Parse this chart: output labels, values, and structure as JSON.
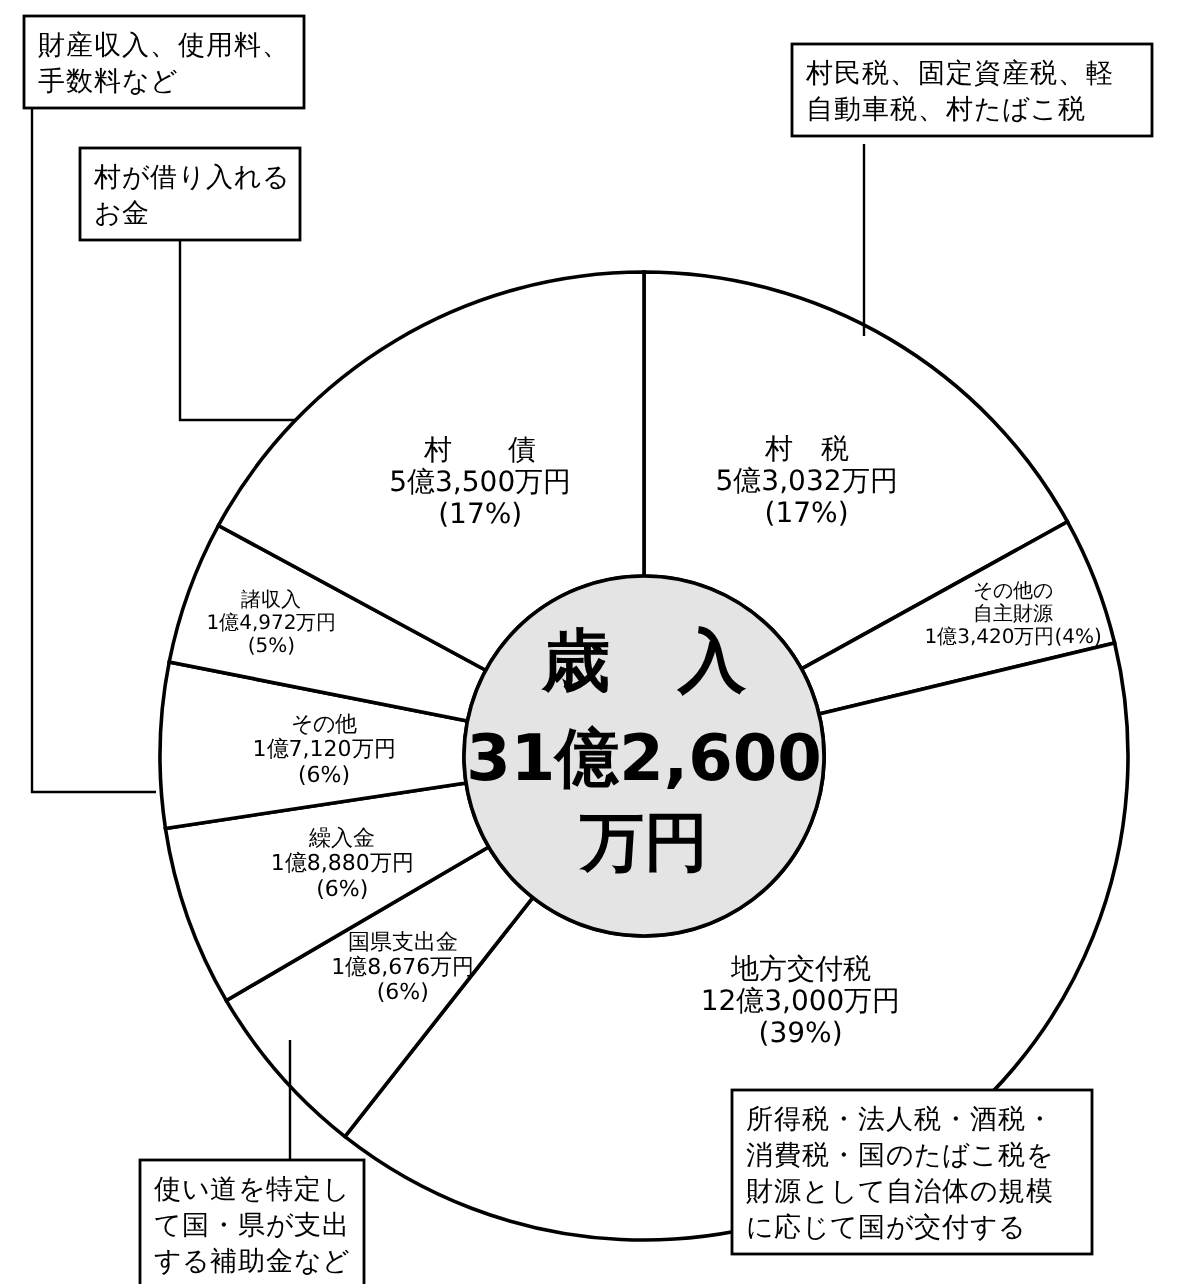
{
  "chart_data": {
    "type": "donut",
    "title": "歳　入",
    "subtitle": "31億2,600万円",
    "categories": [
      "村　税",
      "その他の自主財源",
      "地方交付税",
      "国県支出金",
      "繰入金",
      "その他",
      "諸収入",
      "村　　債"
    ],
    "values": [
      16.96,
      4.29,
      39.35,
      5.97,
      6.04,
      5.5,
      4.79,
      17.1
    ],
    "value_labels": [
      "5億3,032万円\n(17%)",
      "1億3,420万円(4%)",
      "12億3,000万円\n(39%)",
      "1億8,676万円\n(6%)",
      "1億8,880万円\n(6%)",
      "1億7,120万円\n(6%)",
      "1億4,972万円\n(5%)",
      "5億3,500万円\n(17%)"
    ],
    "colors": [
      "#ffffff",
      "#ffffff",
      "#ffffff",
      "#ffffff",
      "#ffffff",
      "#ffffff",
      "#ffffff",
      "#ffffff"
    ],
    "annotations": [
      "財産収入、使用料、手数料など",
      "村が借り入れるお金",
      "村民税、固定資産税、軽自動車税、村たばこ税",
      "所得税・法人税・酒税・消費税・国のたばこ税を財源として自治体の規模に応じて国が交付する",
      "使い道を特定して国・県が支出する補助金など"
    ]
  }
}
